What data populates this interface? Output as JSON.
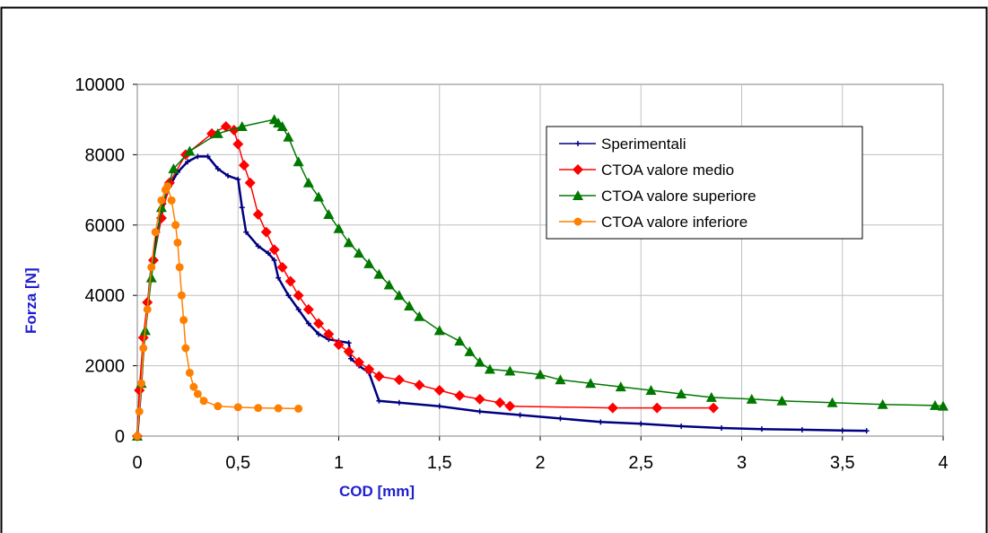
{
  "chart_data": {
    "type": "scatter",
    "xlabel": "COD [mm]",
    "ylabel": "Forza [N]",
    "xlim": [
      0,
      4
    ],
    "ylim": [
      0,
      10000
    ],
    "x_ticks": [
      "0",
      "0,5",
      "1",
      "1,5",
      "2",
      "2,5",
      "3",
      "3,5",
      "4"
    ],
    "y_ticks": [
      "0",
      "2000",
      "4000",
      "6000",
      "8000",
      "10000"
    ],
    "grid": true,
    "legend_position": "top-right",
    "series": [
      {
        "name": "Sperimentali",
        "color": "#000080",
        "marker": "plus",
        "points": [
          [
            0,
            0
          ],
          [
            0.01,
            700
          ],
          [
            0.02,
            1500
          ],
          [
            0.03,
            2500
          ],
          [
            0.05,
            3600
          ],
          [
            0.07,
            4800
          ],
          [
            0.1,
            5800
          ],
          [
            0.13,
            6600
          ],
          [
            0.16,
            7100
          ],
          [
            0.2,
            7500
          ],
          [
            0.25,
            7800
          ],
          [
            0.3,
            7950
          ],
          [
            0.35,
            7950
          ],
          [
            0.4,
            7600
          ],
          [
            0.45,
            7400
          ],
          [
            0.5,
            7300
          ],
          [
            0.52,
            6500
          ],
          [
            0.54,
            5800
          ],
          [
            0.6,
            5400
          ],
          [
            0.65,
            5200
          ],
          [
            0.68,
            5000
          ],
          [
            0.7,
            4500
          ],
          [
            0.75,
            4000
          ],
          [
            0.8,
            3600
          ],
          [
            0.85,
            3200
          ],
          [
            0.9,
            2900
          ],
          [
            0.95,
            2750
          ],
          [
            1.0,
            2700
          ],
          [
            1.05,
            2650
          ],
          [
            1.06,
            2200
          ],
          [
            1.1,
            2000
          ],
          [
            1.15,
            1800
          ],
          [
            1.2,
            1000
          ],
          [
            1.3,
            950
          ],
          [
            1.5,
            850
          ],
          [
            1.7,
            700
          ],
          [
            1.9,
            600
          ],
          [
            2.1,
            500
          ],
          [
            2.3,
            400
          ],
          [
            2.5,
            350
          ],
          [
            2.7,
            280
          ],
          [
            2.9,
            230
          ],
          [
            3.1,
            200
          ],
          [
            3.3,
            180
          ],
          [
            3.5,
            160
          ],
          [
            3.62,
            150
          ]
        ]
      },
      {
        "name": "CTOA valore medio",
        "color": "#ff0000",
        "marker": "diamond",
        "points": [
          [
            0,
            0
          ],
          [
            0.01,
            1300
          ],
          [
            0.03,
            2800
          ],
          [
            0.05,
            3800
          ],
          [
            0.08,
            5000
          ],
          [
            0.12,
            6200
          ],
          [
            0.16,
            7200
          ],
          [
            0.24,
            8000
          ],
          [
            0.37,
            8600
          ],
          [
            0.44,
            8800
          ],
          [
            0.48,
            8700
          ],
          [
            0.5,
            8300
          ],
          [
            0.53,
            7700
          ],
          [
            0.56,
            7200
          ],
          [
            0.6,
            6300
          ],
          [
            0.64,
            5800
          ],
          [
            0.68,
            5300
          ],
          [
            0.72,
            4800
          ],
          [
            0.76,
            4400
          ],
          [
            0.8,
            4000
          ],
          [
            0.85,
            3600
          ],
          [
            0.9,
            3200
          ],
          [
            0.95,
            2900
          ],
          [
            1.0,
            2600
          ],
          [
            1.05,
            2400
          ],
          [
            1.1,
            2100
          ],
          [
            1.15,
            1900
          ],
          [
            1.2,
            1700
          ],
          [
            1.3,
            1600
          ],
          [
            1.4,
            1450
          ],
          [
            1.5,
            1300
          ],
          [
            1.6,
            1150
          ],
          [
            1.7,
            1050
          ],
          [
            1.8,
            950
          ],
          [
            1.85,
            850
          ],
          [
            2.36,
            800
          ],
          [
            2.58,
            800
          ],
          [
            2.86,
            800
          ]
        ]
      },
      {
        "name": "CTOA valore superiore",
        "color": "#007800",
        "marker": "triangle",
        "points": [
          [
            0,
            0
          ],
          [
            0.02,
            1500
          ],
          [
            0.04,
            3000
          ],
          [
            0.07,
            4500
          ],
          [
            0.12,
            6500
          ],
          [
            0.18,
            7600
          ],
          [
            0.26,
            8100
          ],
          [
            0.4,
            8600
          ],
          [
            0.52,
            8800
          ],
          [
            0.68,
            9000
          ],
          [
            0.7,
            8900
          ],
          [
            0.72,
            8800
          ],
          [
            0.75,
            8500
          ],
          [
            0.8,
            7800
          ],
          [
            0.85,
            7200
          ],
          [
            0.9,
            6800
          ],
          [
            0.95,
            6300
          ],
          [
            1.0,
            5900
          ],
          [
            1.05,
            5500
          ],
          [
            1.1,
            5200
          ],
          [
            1.15,
            4900
          ],
          [
            1.2,
            4600
          ],
          [
            1.25,
            4300
          ],
          [
            1.3,
            4000
          ],
          [
            1.35,
            3700
          ],
          [
            1.4,
            3400
          ],
          [
            1.5,
            3000
          ],
          [
            1.6,
            2700
          ],
          [
            1.65,
            2400
          ],
          [
            1.7,
            2100
          ],
          [
            1.75,
            1900
          ],
          [
            1.85,
            1850
          ],
          [
            2.0,
            1750
          ],
          [
            2.1,
            1600
          ],
          [
            2.25,
            1500
          ],
          [
            2.4,
            1400
          ],
          [
            2.55,
            1300
          ],
          [
            2.7,
            1200
          ],
          [
            2.85,
            1100
          ],
          [
            3.05,
            1050
          ],
          [
            3.2,
            1000
          ],
          [
            3.45,
            950
          ],
          [
            3.7,
            900
          ],
          [
            3.96,
            870
          ],
          [
            4.0,
            850
          ]
        ]
      },
      {
        "name": "CTOA valore inferiore",
        "color": "#ff8000",
        "marker": "circle",
        "points": [
          [
            0,
            0
          ],
          [
            0.01,
            700
          ],
          [
            0.02,
            1500
          ],
          [
            0.03,
            2500
          ],
          [
            0.05,
            3600
          ],
          [
            0.07,
            4800
          ],
          [
            0.09,
            5800
          ],
          [
            0.12,
            6700
          ],
          [
            0.14,
            7000
          ],
          [
            0.15,
            7100
          ],
          [
            0.17,
            6700
          ],
          [
            0.19,
            6000
          ],
          [
            0.2,
            5500
          ],
          [
            0.21,
            4800
          ],
          [
            0.22,
            4000
          ],
          [
            0.23,
            3300
          ],
          [
            0.24,
            2500
          ],
          [
            0.26,
            1800
          ],
          [
            0.28,
            1400
          ],
          [
            0.3,
            1200
          ],
          [
            0.33,
            1000
          ],
          [
            0.4,
            850
          ],
          [
            0.5,
            820
          ],
          [
            0.6,
            800
          ],
          [
            0.7,
            790
          ],
          [
            0.8,
            780
          ]
        ]
      }
    ]
  }
}
